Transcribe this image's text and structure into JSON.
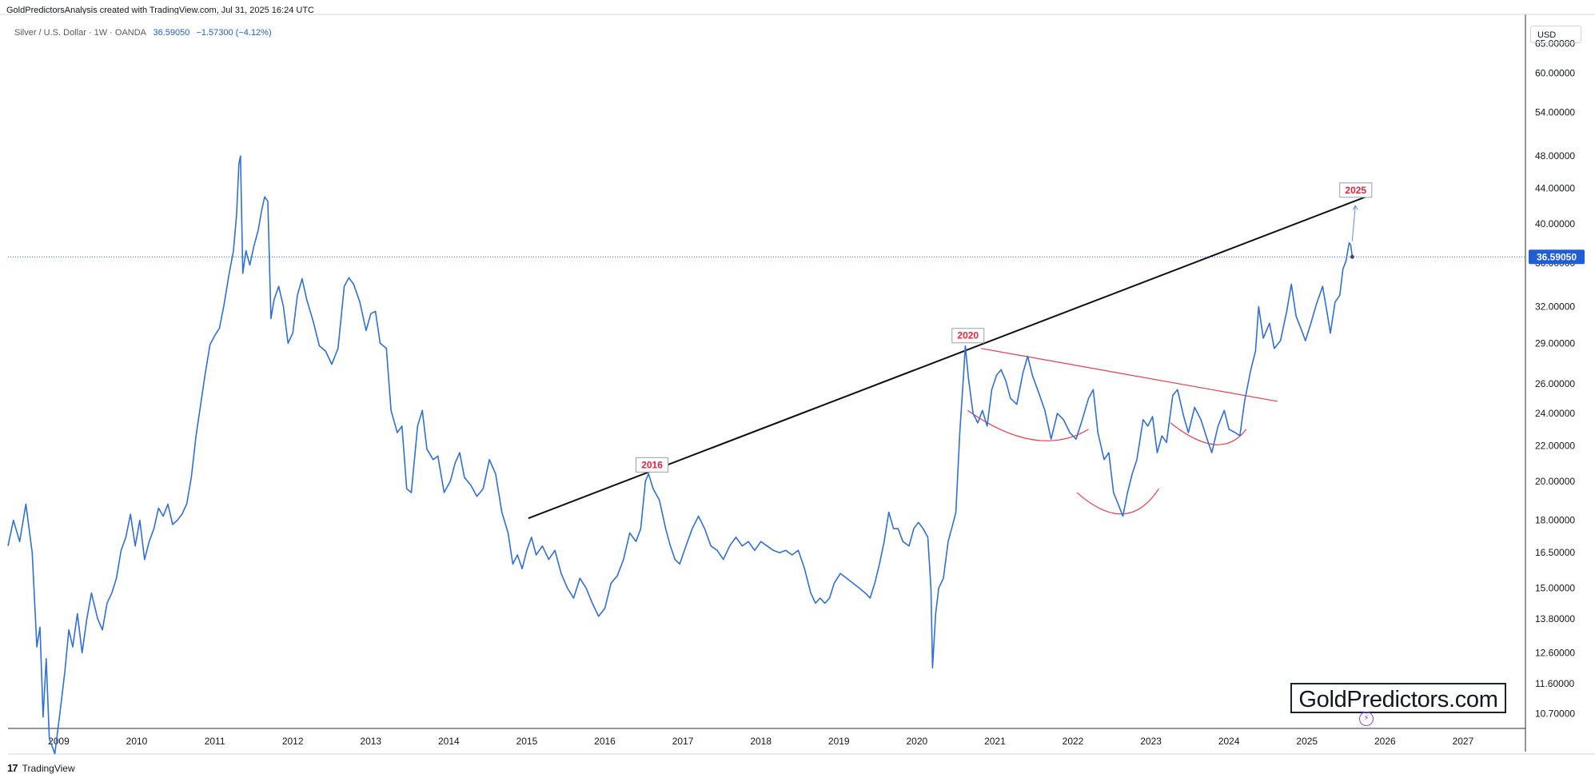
{
  "header": {
    "title": "GoldPredictorsAnalysis created with TradingView.com, Jul 31, 2025 16:24 UTC"
  },
  "legend": {
    "symbol": "Silver / U.S. Dollar · 1W · OANDA",
    "price": "36.59050",
    "change": "−1.57300 (−4.12%)"
  },
  "axis": {
    "currency": "USD",
    "current_price_label": "36.59050"
  },
  "footer": {
    "brand": "TradingView"
  },
  "watermark": "GoldPredictors.com",
  "colors": {
    "series": "#2f6fd8",
    "trendline": "#111111",
    "neckline": "#f03a4a",
    "annotation_text": "#e8233a",
    "price_tag": "#1e5fd6"
  },
  "chart_data": {
    "type": "line",
    "title": "Silver / U.S. Dollar · 1W · OANDA",
    "xlabel": "",
    "ylabel": "",
    "scale": "log",
    "grid": false,
    "xlim": [
      2008.35,
      2027.8
    ],
    "ylim": [
      10.3,
      70
    ],
    "x_ticks": [
      "2009",
      "2010",
      "2011",
      "2012",
      "2013",
      "2014",
      "2015",
      "2016",
      "2017",
      "2018",
      "2019",
      "2020",
      "2021",
      "2022",
      "2023",
      "2024",
      "2025",
      "2026",
      "2027"
    ],
    "y_ticks": [
      "10.70000",
      "11.60000",
      "12.60000",
      "13.80000",
      "15.00000",
      "16.50000",
      "18.00000",
      "20.00000",
      "22.00000",
      "24.00000",
      "26.00000",
      "29.00000",
      "32.00000",
      "36.00000",
      "40.00000",
      "44.00000",
      "48.00000",
      "54.00000",
      "60.00000",
      "65.00000"
    ],
    "last_price": 36.5905,
    "series": [
      {
        "points": [
          [
            2008.35,
            16.8
          ],
          [
            2008.42,
            18.0
          ],
          [
            2008.5,
            17.0
          ],
          [
            2008.58,
            18.8
          ],
          [
            2008.66,
            16.5
          ],
          [
            2008.72,
            12.8
          ],
          [
            2008.76,
            13.5
          ],
          [
            2008.8,
            10.6
          ],
          [
            2008.84,
            12.4
          ],
          [
            2008.88,
            10.0
          ],
          [
            2008.95,
            9.6
          ],
          [
            2009.02,
            10.8
          ],
          [
            2009.08,
            12.0
          ],
          [
            2009.13,
            13.4
          ],
          [
            2009.18,
            12.8
          ],
          [
            2009.24,
            14.0
          ],
          [
            2009.3,
            12.6
          ],
          [
            2009.36,
            13.8
          ],
          [
            2009.42,
            14.8
          ],
          [
            2009.5,
            13.8
          ],
          [
            2009.56,
            13.4
          ],
          [
            2009.62,
            14.4
          ],
          [
            2009.68,
            14.8
          ],
          [
            2009.74,
            15.4
          ],
          [
            2009.8,
            16.6
          ],
          [
            2009.86,
            17.2
          ],
          [
            2009.92,
            18.3
          ],
          [
            2009.98,
            16.8
          ],
          [
            2010.04,
            18.0
          ],
          [
            2010.1,
            16.2
          ],
          [
            2010.16,
            17.0
          ],
          [
            2010.22,
            17.6
          ],
          [
            2010.28,
            18.6
          ],
          [
            2010.34,
            18.2
          ],
          [
            2010.4,
            18.8
          ],
          [
            2010.46,
            17.8
          ],
          [
            2010.52,
            18.0
          ],
          [
            2010.58,
            18.3
          ],
          [
            2010.64,
            18.8
          ],
          [
            2010.7,
            20.2
          ],
          [
            2010.76,
            22.6
          ],
          [
            2010.82,
            24.6
          ],
          [
            2010.88,
            26.8
          ],
          [
            2010.94,
            28.9
          ],
          [
            2011.0,
            29.6
          ],
          [
            2011.06,
            30.2
          ],
          [
            2011.12,
            32.2
          ],
          [
            2011.18,
            34.8
          ],
          [
            2011.24,
            37.2
          ],
          [
            2011.28,
            41.0
          ],
          [
            2011.31,
            47.0
          ],
          [
            2011.33,
            48.0
          ],
          [
            2011.36,
            35.0
          ],
          [
            2011.4,
            37.2
          ],
          [
            2011.45,
            35.8
          ],
          [
            2011.5,
            37.6
          ],
          [
            2011.56,
            39.4
          ],
          [
            2011.6,
            41.4
          ],
          [
            2011.64,
            43.0
          ],
          [
            2011.68,
            42.5
          ],
          [
            2011.72,
            31.0
          ],
          [
            2011.76,
            32.6
          ],
          [
            2011.82,
            33.8
          ],
          [
            2011.88,
            32.0
          ],
          [
            2011.94,
            29.0
          ],
          [
            2012.0,
            29.8
          ],
          [
            2012.06,
            33.0
          ],
          [
            2012.12,
            34.5
          ],
          [
            2012.18,
            32.6
          ],
          [
            2012.26,
            30.8
          ],
          [
            2012.34,
            28.8
          ],
          [
            2012.42,
            28.4
          ],
          [
            2012.5,
            27.4
          ],
          [
            2012.58,
            28.6
          ],
          [
            2012.66,
            33.8
          ],
          [
            2012.72,
            34.6
          ],
          [
            2012.78,
            34.0
          ],
          [
            2012.86,
            32.4
          ],
          [
            2012.94,
            30.0
          ],
          [
            2013.0,
            31.4
          ],
          [
            2013.06,
            31.6
          ],
          [
            2013.12,
            29.0
          ],
          [
            2013.2,
            28.6
          ],
          [
            2013.26,
            24.2
          ],
          [
            2013.34,
            22.8
          ],
          [
            2013.4,
            23.2
          ],
          [
            2013.46,
            19.6
          ],
          [
            2013.52,
            19.4
          ],
          [
            2013.6,
            23.2
          ],
          [
            2013.66,
            24.2
          ],
          [
            2013.72,
            21.8
          ],
          [
            2013.8,
            21.2
          ],
          [
            2013.86,
            21.4
          ],
          [
            2013.94,
            19.4
          ],
          [
            2014.02,
            20.0
          ],
          [
            2014.08,
            21.0
          ],
          [
            2014.14,
            21.6
          ],
          [
            2014.2,
            20.2
          ],
          [
            2014.28,
            19.8
          ],
          [
            2014.36,
            19.2
          ],
          [
            2014.44,
            19.6
          ],
          [
            2014.52,
            21.2
          ],
          [
            2014.6,
            20.4
          ],
          [
            2014.68,
            18.4
          ],
          [
            2014.76,
            17.4
          ],
          [
            2014.82,
            16.0
          ],
          [
            2014.88,
            16.4
          ],
          [
            2014.94,
            15.8
          ],
          [
            2015.0,
            16.6
          ],
          [
            2015.06,
            17.2
          ],
          [
            2015.12,
            16.4
          ],
          [
            2015.2,
            16.8
          ],
          [
            2015.28,
            16.2
          ],
          [
            2015.36,
            16.6
          ],
          [
            2015.44,
            15.6
          ],
          [
            2015.52,
            15.0
          ],
          [
            2015.6,
            14.6
          ],
          [
            2015.68,
            15.4
          ],
          [
            2015.76,
            15.0
          ],
          [
            2015.84,
            14.4
          ],
          [
            2015.92,
            13.9
          ],
          [
            2016.0,
            14.2
          ],
          [
            2016.08,
            15.2
          ],
          [
            2016.16,
            15.5
          ],
          [
            2016.24,
            16.2
          ],
          [
            2016.32,
            17.4
          ],
          [
            2016.4,
            17.0
          ],
          [
            2016.46,
            17.6
          ],
          [
            2016.52,
            20.0
          ],
          [
            2016.56,
            20.4
          ],
          [
            2016.62,
            19.6
          ],
          [
            2016.7,
            19.0
          ],
          [
            2016.78,
            17.6
          ],
          [
            2016.84,
            16.8
          ],
          [
            2016.9,
            16.2
          ],
          [
            2016.96,
            16.0
          ],
          [
            2017.04,
            16.8
          ],
          [
            2017.12,
            17.6
          ],
          [
            2017.2,
            18.2
          ],
          [
            2017.28,
            17.6
          ],
          [
            2017.36,
            16.8
          ],
          [
            2017.44,
            16.6
          ],
          [
            2017.52,
            16.2
          ],
          [
            2017.6,
            16.8
          ],
          [
            2017.68,
            17.2
          ],
          [
            2017.76,
            16.8
          ],
          [
            2017.84,
            17.0
          ],
          [
            2017.92,
            16.6
          ],
          [
            2018.0,
            17.0
          ],
          [
            2018.08,
            16.8
          ],
          [
            2018.16,
            16.6
          ],
          [
            2018.24,
            16.5
          ],
          [
            2018.32,
            16.6
          ],
          [
            2018.4,
            16.4
          ],
          [
            2018.48,
            16.6
          ],
          [
            2018.56,
            15.8
          ],
          [
            2018.64,
            14.8
          ],
          [
            2018.7,
            14.4
          ],
          [
            2018.76,
            14.6
          ],
          [
            2018.82,
            14.4
          ],
          [
            2018.88,
            14.6
          ],
          [
            2018.94,
            15.2
          ],
          [
            2019.02,
            15.6
          ],
          [
            2019.1,
            15.4
          ],
          [
            2019.18,
            15.2
          ],
          [
            2019.26,
            15.0
          ],
          [
            2019.34,
            14.8
          ],
          [
            2019.4,
            14.6
          ],
          [
            2019.46,
            15.2
          ],
          [
            2019.52,
            16.0
          ],
          [
            2019.58,
            17.0
          ],
          [
            2019.64,
            18.4
          ],
          [
            2019.7,
            17.6
          ],
          [
            2019.76,
            17.6
          ],
          [
            2019.82,
            17.0
          ],
          [
            2019.9,
            16.8
          ],
          [
            2019.96,
            17.6
          ],
          [
            2020.02,
            17.9
          ],
          [
            2020.08,
            17.6
          ],
          [
            2020.14,
            17.2
          ],
          [
            2020.18,
            15.0
          ],
          [
            2020.2,
            12.1
          ],
          [
            2020.24,
            14.0
          ],
          [
            2020.28,
            15.0
          ],
          [
            2020.34,
            15.4
          ],
          [
            2020.4,
            17.0
          ],
          [
            2020.46,
            17.8
          ],
          [
            2020.5,
            18.4
          ],
          [
            2020.55,
            22.8
          ],
          [
            2020.6,
            26.8
          ],
          [
            2020.62,
            28.8
          ],
          [
            2020.66,
            26.4
          ],
          [
            2020.72,
            24.0
          ],
          [
            2020.78,
            23.4
          ],
          [
            2020.84,
            24.2
          ],
          [
            2020.9,
            23.2
          ],
          [
            2020.96,
            25.6
          ],
          [
            2021.02,
            26.6
          ],
          [
            2021.08,
            27.0
          ],
          [
            2021.14,
            26.2
          ],
          [
            2021.2,
            25.0
          ],
          [
            2021.28,
            24.6
          ],
          [
            2021.36,
            26.8
          ],
          [
            2021.42,
            28.0
          ],
          [
            2021.48,
            26.6
          ],
          [
            2021.56,
            25.4
          ],
          [
            2021.64,
            24.2
          ],
          [
            2021.72,
            22.4
          ],
          [
            2021.8,
            24.0
          ],
          [
            2021.88,
            23.6
          ],
          [
            2021.96,
            22.8
          ],
          [
            2022.04,
            22.4
          ],
          [
            2022.12,
            23.6
          ],
          [
            2022.2,
            25.0
          ],
          [
            2022.26,
            25.6
          ],
          [
            2022.32,
            22.8
          ],
          [
            2022.4,
            21.2
          ],
          [
            2022.46,
            21.6
          ],
          [
            2022.52,
            19.4
          ],
          [
            2022.58,
            18.8
          ],
          [
            2022.64,
            18.2
          ],
          [
            2022.7,
            19.4
          ],
          [
            2022.76,
            20.4
          ],
          [
            2022.82,
            21.2
          ],
          [
            2022.9,
            23.6
          ],
          [
            2022.96,
            23.2
          ],
          [
            2023.02,
            23.8
          ],
          [
            2023.08,
            21.6
          ],
          [
            2023.14,
            22.6
          ],
          [
            2023.2,
            22.2
          ],
          [
            2023.28,
            25.2
          ],
          [
            2023.34,
            25.6
          ],
          [
            2023.42,
            23.8
          ],
          [
            2023.48,
            22.8
          ],
          [
            2023.56,
            24.4
          ],
          [
            2023.64,
            23.6
          ],
          [
            2023.72,
            22.4
          ],
          [
            2023.78,
            21.6
          ],
          [
            2023.86,
            23.2
          ],
          [
            2023.94,
            24.2
          ],
          [
            2024.0,
            23.0
          ],
          [
            2024.08,
            22.8
          ],
          [
            2024.14,
            22.6
          ],
          [
            2024.2,
            24.8
          ],
          [
            2024.28,
            27.0
          ],
          [
            2024.34,
            28.4
          ],
          [
            2024.38,
            32.0
          ],
          [
            2024.44,
            29.4
          ],
          [
            2024.52,
            30.6
          ],
          [
            2024.58,
            28.6
          ],
          [
            2024.66,
            29.2
          ],
          [
            2024.74,
            31.6
          ],
          [
            2024.8,
            34.0
          ],
          [
            2024.86,
            31.2
          ],
          [
            2024.92,
            30.2
          ],
          [
            2024.98,
            29.2
          ],
          [
            2025.04,
            30.4
          ],
          [
            2025.12,
            32.2
          ],
          [
            2025.2,
            33.8
          ],
          [
            2025.26,
            31.4
          ],
          [
            2025.3,
            29.8
          ],
          [
            2025.36,
            32.4
          ],
          [
            2025.42,
            33.0
          ],
          [
            2025.46,
            35.4
          ],
          [
            2025.5,
            36.2
          ],
          [
            2025.54,
            38.0
          ],
          [
            2025.56,
            37.8
          ],
          [
            2025.58,
            36.59
          ]
        ]
      }
    ],
    "annotations": [
      {
        "label": "2016"
      },
      {
        "label": "2020"
      },
      {
        "label": "2025"
      }
    ]
  }
}
